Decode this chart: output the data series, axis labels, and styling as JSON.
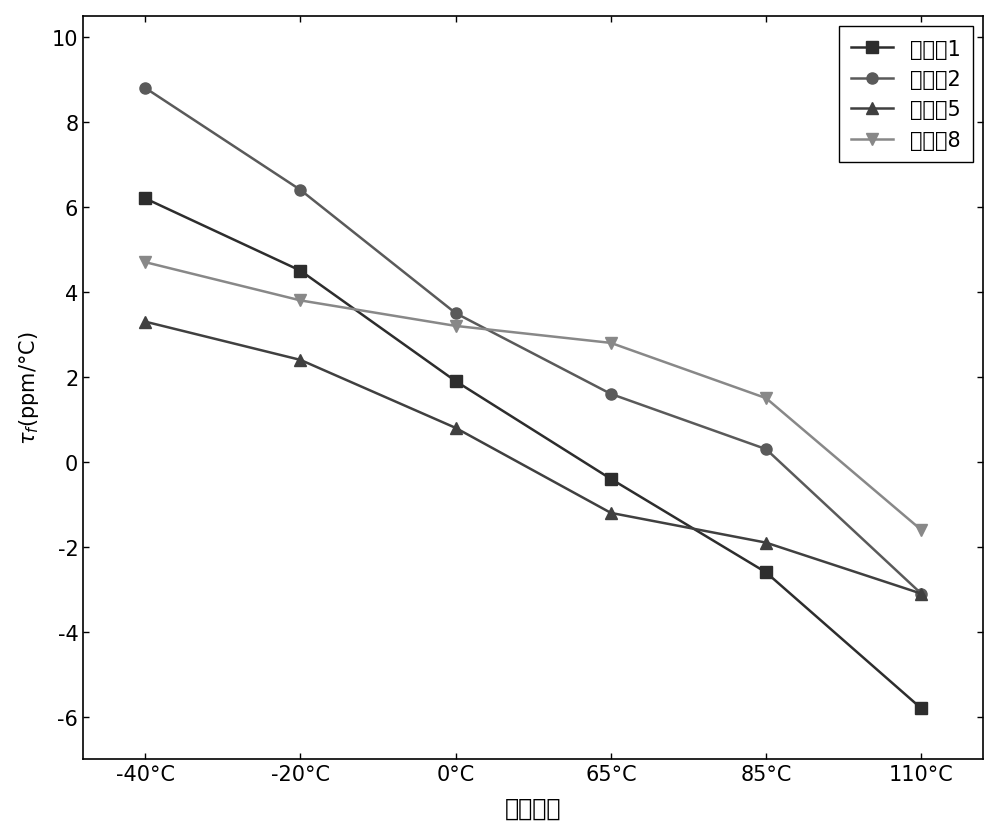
{
  "x_labels": [
    "-40°C",
    "-20°C",
    "0°C",
    "65°C",
    "85°C",
    "110°C"
  ],
  "x_values": [
    0,
    1,
    2,
    3,
    4,
    5
  ],
  "series": [
    {
      "label": "对照夁1",
      "values": [
        6.2,
        4.5,
        1.9,
        -0.4,
        -2.6,
        -5.8
      ],
      "color": "#2d2d2d",
      "marker": "s",
      "linestyle": "-"
    },
    {
      "label": "对照夁2",
      "values": [
        8.8,
        6.4,
        3.5,
        1.6,
        0.3,
        -3.1
      ],
      "color": "#5a5a5a",
      "marker": "o",
      "linestyle": "-"
    },
    {
      "label": "实施夷5",
      "values": [
        3.3,
        2.4,
        0.8,
        -1.2,
        -1.9,
        -3.1
      ],
      "color": "#404040",
      "marker": "^",
      "linestyle": "-"
    },
    {
      "label": "实施夷8",
      "values": [
        4.7,
        3.8,
        3.2,
        2.8,
        1.5,
        -1.6
      ],
      "color": "#888888",
      "marker": "v",
      "linestyle": "-"
    }
  ],
  "xlabel": "测试温度",
  "ylim": [
    -7,
    10.5
  ],
  "yticks": [
    -6,
    -4,
    -2,
    0,
    2,
    4,
    6,
    8,
    10
  ],
  "background_color": "#ffffff",
  "linewidth": 1.8,
  "markersize": 8,
  "legend_fontsize": 15,
  "tick_fontsize": 15,
  "xlabel_fontsize": 17,
  "ylabel_fontsize": 15
}
